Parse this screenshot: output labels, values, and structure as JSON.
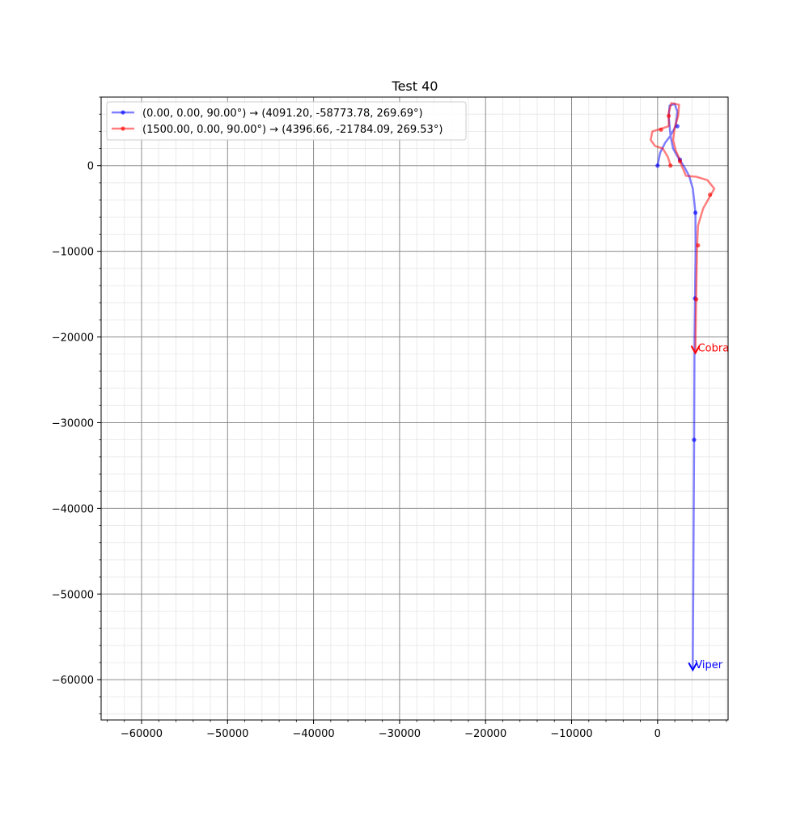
{
  "chart_data": {
    "type": "line",
    "title": "Test 40",
    "xlabel": "",
    "ylabel": "",
    "xlim": [
      -64700,
      8200
    ],
    "ylim": [
      -64700,
      8000
    ],
    "xticks": [
      -60000,
      -50000,
      -40000,
      -30000,
      -20000,
      -10000,
      0
    ],
    "yticks": [
      0,
      -10000,
      -20000,
      -30000,
      -40000,
      -50000,
      -60000
    ],
    "xtick_labels": [
      "−60000",
      "−50000",
      "−40000",
      "−30000",
      "−20000",
      "−10000",
      "0"
    ],
    "ytick_labels": [
      "0",
      "−10000",
      "−20000",
      "−30000",
      "−40000",
      "−50000",
      "−60000"
    ],
    "grid": true,
    "legend_position": "top-left",
    "series": [
      {
        "name": "(0.00, 0.00, 90.00°) → (4091.20, -58773.78, 269.69°)",
        "end_label": "Viper",
        "color": "#0000ff",
        "x": [
          0,
          300,
          900,
          1500,
          2100,
          2300,
          2000,
          1400,
          1300,
          1500,
          1800,
          2300,
          2700,
          3200,
          3700,
          4100,
          4300,
          4400,
          4420,
          4350,
          4300,
          4250,
          4200,
          4150,
          4100,
          4091
        ],
        "y": [
          0,
          1500,
          2700,
          3500,
          4600,
          6300,
          7200,
          7000,
          5700,
          3500,
          2000,
          1100,
          500,
          -300,
          -1300,
          -2700,
          -4500,
          -5500,
          -10000,
          -15500,
          -20000,
          -32000,
          -40000,
          -50000,
          -57000,
          -58774
        ],
        "markers_x": [
          0,
          2300,
          2600,
          4400,
          4350,
          4250
        ],
        "markers_y": [
          0,
          4600,
          700,
          -5500,
          -15500,
          -32000
        ]
      },
      {
        "name": "(1500.00, 0.00, 90.00°) → (4396.66, -21784.09, 269.53°)",
        "end_label": "Cobra",
        "color": "#ff0000",
        "x": [
          1500,
          1200,
          600,
          -300,
          -800,
          -600,
          400,
          1300,
          1300,
          1600,
          2500,
          2400,
          2000,
          1800,
          2100,
          2500,
          2800,
          3300,
          4500,
          5800,
          6600,
          6200,
          5300,
          4700,
          4600,
          4550,
          4480,
          4397
        ],
        "y": [
          0,
          1000,
          2000,
          2300,
          3000,
          4000,
          4300,
          4600,
          6200,
          7300,
          7100,
          5800,
          4500,
          3000,
          1800,
          900,
          0,
          -1200,
          -1300,
          -1700,
          -2700,
          -3400,
          -5000,
          -7000,
          -9300,
          -12000,
          -15600,
          -21784
        ],
        "markers_x": [
          1500,
          400,
          1300,
          2600,
          6100,
          4700,
          4500
        ],
        "markers_y": [
          0,
          4200,
          5800,
          500,
          -3400,
          -9300,
          -15600
        ]
      }
    ]
  }
}
